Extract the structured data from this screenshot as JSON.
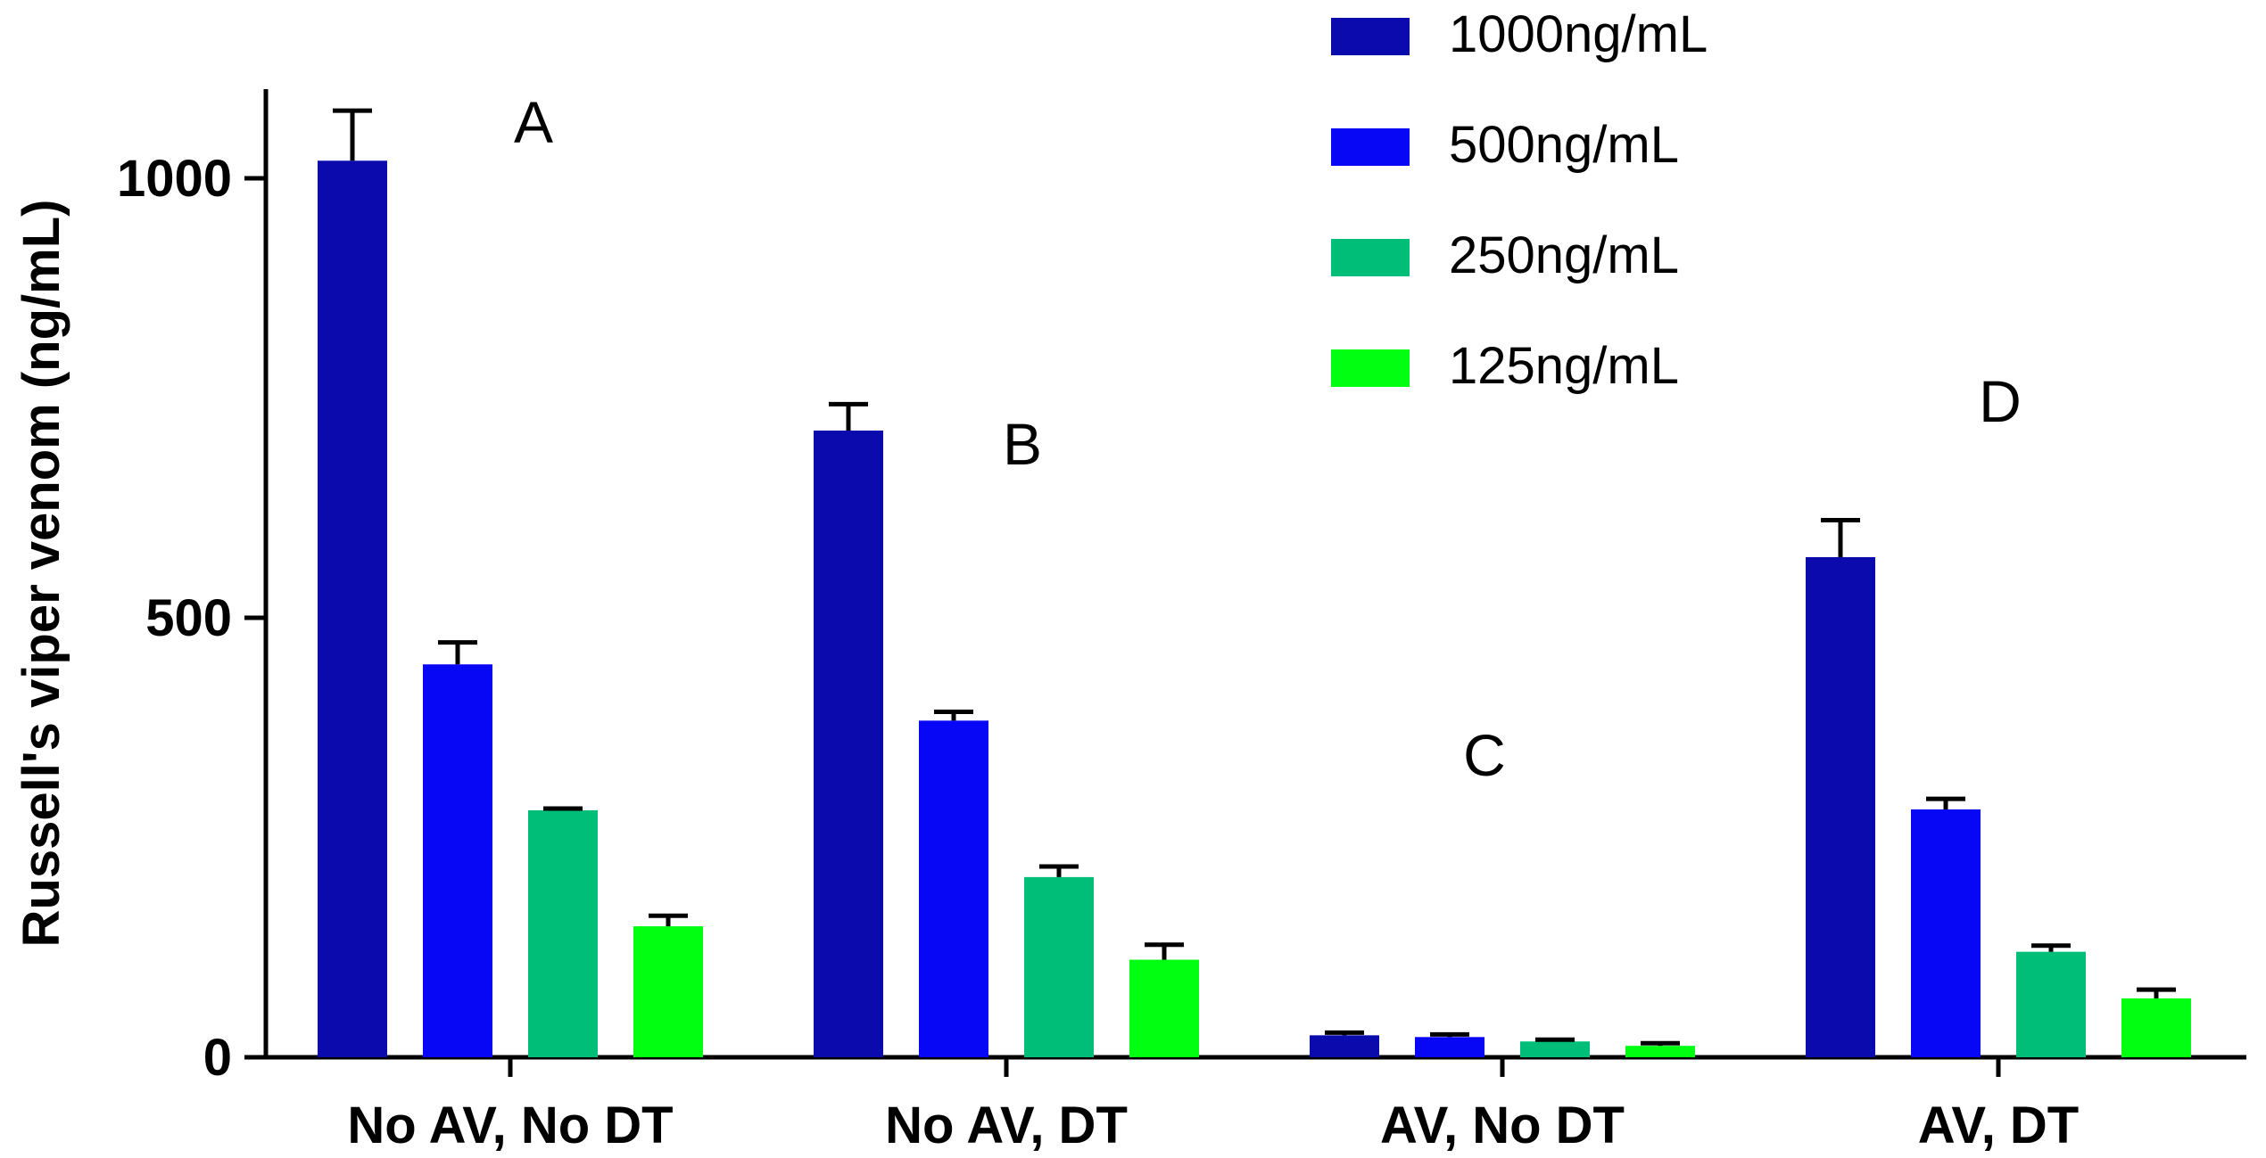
{
  "chart_data": {
    "type": "bar",
    "title": "",
    "xlabel": "",
    "ylabel": "Russell's viper venom (ng/mL)",
    "ylim": [
      0,
      1100
    ],
    "yticks": [
      0,
      500,
      1000
    ],
    "categories": [
      "No AV, No DT",
      "No AV, DT",
      "AV, No DT",
      "AV, DT"
    ],
    "group_annotations": [
      "A",
      "B",
      "C",
      "D"
    ],
    "legend_position": "top-right",
    "grid": false,
    "series": [
      {
        "name": "1000ng/mL",
        "color": "#0a0aad",
        "values": [
          1020,
          713,
          25,
          569
        ],
        "errors": [
          57,
          30,
          3,
          42
        ]
      },
      {
        "name": "500ng/mL",
        "color": "#0707f5",
        "values": [
          447,
          383,
          23,
          282
        ],
        "errors": [
          25,
          10,
          3,
          12
        ]
      },
      {
        "name": "250ng/mL",
        "color": "#00be78",
        "values": [
          281,
          205,
          18,
          120
        ],
        "errors": [
          2,
          12,
          2,
          7
        ]
      },
      {
        "name": "125ng/mL",
        "color": "#00ff11",
        "values": [
          149,
          111,
          13,
          67
        ],
        "errors": [
          12,
          17,
          3,
          10
        ]
      }
    ]
  }
}
